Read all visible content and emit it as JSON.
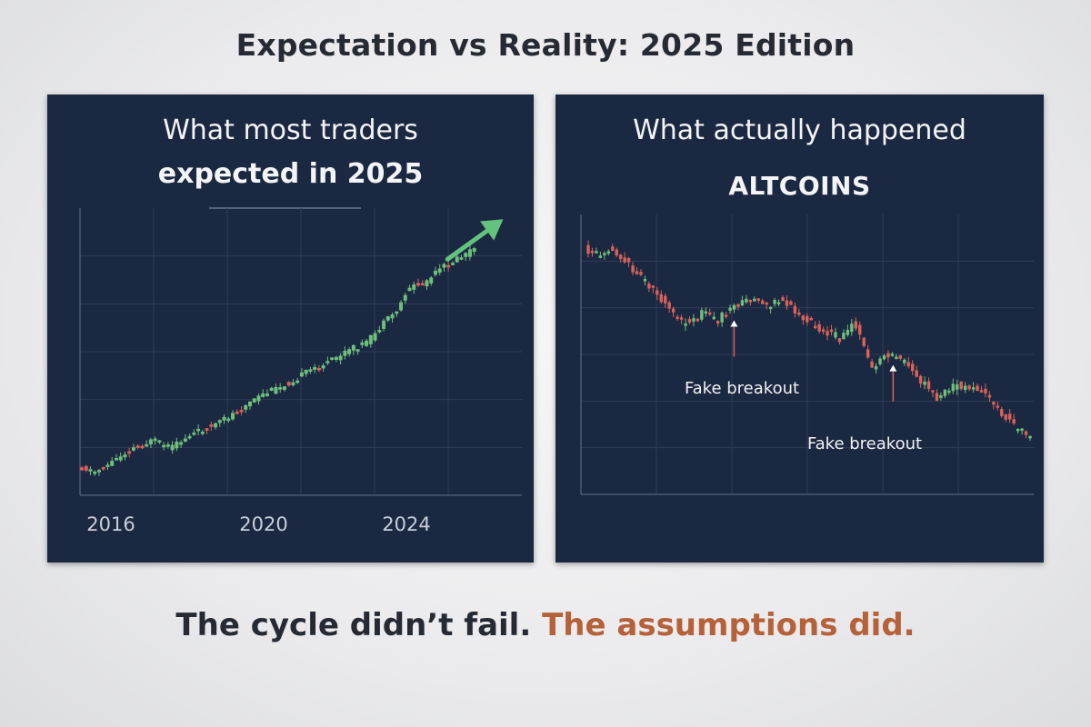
{
  "page": {
    "title": "Expectation vs Reality: 2025 Edition",
    "tagline_part1": "The cycle didn’t fail.",
    "tagline_part2": "The assumptions did."
  },
  "colors": {
    "panel_bg": "#1b2841",
    "up": "#6fbf7c",
    "down": "#d9625a",
    "arrow": "#62c27e",
    "accent_text": "#b5613a"
  },
  "chart_data": [
    {
      "type": "candlestick",
      "title_line1": "What most traders",
      "title_line2": "expected in 2025",
      "x_ticks": [
        "2016",
        "2020",
        "2024"
      ],
      "x_tick_years": [
        2016,
        2020,
        2024
      ],
      "xlim": [
        2015.8,
        2025.3
      ],
      "ylim": [
        0,
        100
      ],
      "grid": true,
      "trend_arrow": "up",
      "path_years": [
        2015.8,
        2016.2,
        2016.5,
        2017.0,
        2017.5,
        2017.9,
        2018.3,
        2018.7,
        2019.0,
        2019.5,
        2020.0,
        2020.5,
        2021.0,
        2021.4,
        2021.9,
        2022.3,
        2022.6,
        2023.0,
        2023.2,
        2023.6,
        2024.0,
        2024.5,
        2025.0,
        2025.3
      ],
      "path_values": [
        2,
        0,
        3,
        9,
        12,
        9,
        14,
        17,
        19,
        25,
        30,
        34,
        39,
        42,
        47,
        50,
        56,
        63,
        71,
        73,
        79,
        84,
        90,
        95
      ]
    },
    {
      "type": "candlestick",
      "title_line1": "What actually happened",
      "title_line2": "ALTCOINS",
      "ylim": [
        0,
        100
      ],
      "grid": true,
      "path_t": [
        0,
        0.03,
        0.06,
        0.09,
        0.13,
        0.17,
        0.2,
        0.24,
        0.27,
        0.3,
        0.34,
        0.38,
        0.41,
        0.45,
        0.49,
        0.52,
        0.55,
        0.58,
        0.61,
        0.64,
        0.65,
        0.68,
        0.7,
        0.73,
        0.76,
        0.8,
        0.84,
        0.88,
        0.91,
        0.94,
        0.97,
        1.0
      ],
      "path_values": [
        93,
        90,
        94,
        87,
        80,
        71,
        63,
        58,
        65,
        60,
        67,
        70,
        66,
        70,
        62,
        58,
        55,
        52,
        60,
        44,
        38,
        46,
        44,
        40,
        33,
        25,
        31,
        29,
        27,
        19,
        13,
        8
      ],
      "annotations": [
        {
          "label": "Fake breakout",
          "t": 0.33
        },
        {
          "label": "Fake breakout",
          "t": 0.69
        }
      ]
    }
  ]
}
